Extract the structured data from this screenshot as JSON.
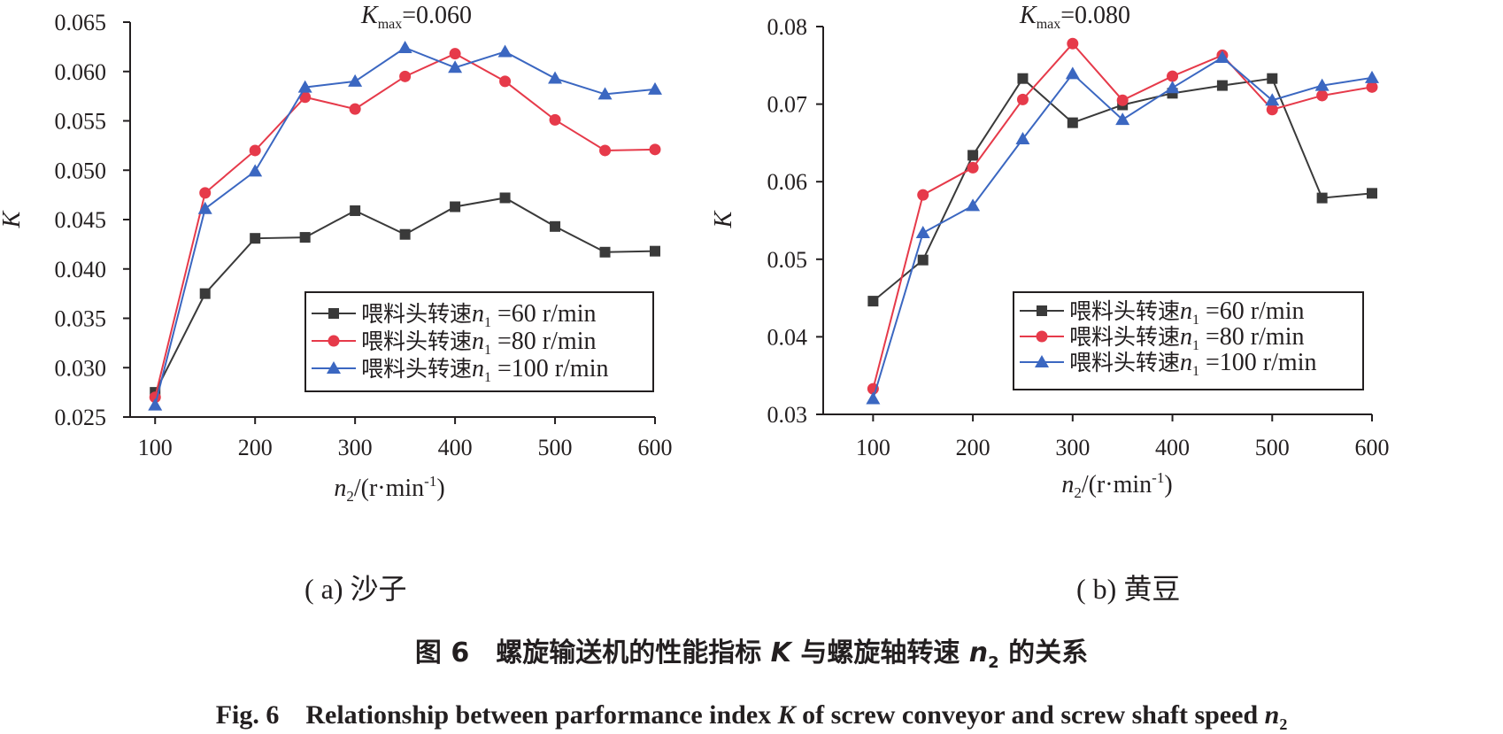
{
  "chart_data": [
    {
      "type": "line",
      "panel": "a",
      "annotation": {
        "text": "K",
        "sub": "max",
        "value": "=0.060"
      },
      "xlabel": {
        "text": "n",
        "sub": "2",
        "unit": "/(r·min",
        "exp": "-1",
        "close": ")"
      },
      "ylabel": "K",
      "x": [
        100,
        150,
        200,
        250,
        300,
        350,
        400,
        450,
        500,
        550,
        600
      ],
      "xticks": [
        "100",
        "200",
        "300",
        "400",
        "500",
        "600"
      ],
      "xtick_values": [
        100,
        200,
        300,
        400,
        500,
        600
      ],
      "yticks": [
        "0.025",
        "0.030",
        "0.035",
        "0.040",
        "0.045",
        "0.050",
        "0.055",
        "0.060",
        "0.065"
      ],
      "ytick_values": [
        0.025,
        0.03,
        0.035,
        0.04,
        0.045,
        0.05,
        0.055,
        0.06,
        0.065
      ],
      "xlim": [
        75,
        600
      ],
      "ylim": [
        0.025,
        0.065
      ],
      "legend_position": "bottom-right",
      "series": [
        {
          "name": "喂料头转速n1 =60 r/min",
          "label": {
            "prefix": "喂料头转速",
            "var": "n",
            "sub": "1",
            "rest": " =60 r/min"
          },
          "color": "#3a3a3a",
          "marker": "square",
          "values": [
            0.0275,
            0.0375,
            0.0431,
            0.0432,
            0.0459,
            0.0435,
            0.0463,
            0.0472,
            0.0443,
            0.0417,
            0.0418
          ]
        },
        {
          "name": "喂料头转速n1 =80 r/min",
          "label": {
            "prefix": "喂料头转速",
            "var": "n",
            "sub": "1",
            "rest": " =80 r/min"
          },
          "color": "#e63a4a",
          "marker": "circle",
          "values": [
            0.027,
            0.0477,
            0.052,
            0.0574,
            0.0562,
            0.0595,
            0.0618,
            0.059,
            0.0551,
            0.052,
            0.0521
          ]
        },
        {
          "name": "喂料头转速n1 =100 r/min",
          "label": {
            "prefix": "喂料头转速",
            "var": "n",
            "sub": "1",
            "rest": " =100 r/min"
          },
          "color": "#3b67c1",
          "marker": "triangle",
          "values": [
            0.0262,
            0.0461,
            0.0499,
            0.0584,
            0.059,
            0.0624,
            0.0604,
            0.062,
            0.0593,
            0.0577,
            0.0582
          ]
        }
      ]
    },
    {
      "type": "line",
      "panel": "b",
      "annotation": {
        "text": "K",
        "sub": "max",
        "value": "=0.080"
      },
      "xlabel": {
        "text": "n",
        "sub": "2",
        "unit": "/(r·min",
        "exp": "-1",
        "close": ")"
      },
      "ylabel": "K",
      "x": [
        100,
        150,
        200,
        250,
        300,
        350,
        400,
        450,
        500,
        550,
        600
      ],
      "xticks": [
        "100",
        "200",
        "300",
        "400",
        "500",
        "600"
      ],
      "xtick_values": [
        100,
        200,
        300,
        400,
        500,
        600
      ],
      "yticks": [
        "0.03",
        "0.04",
        "0.05",
        "0.06",
        "0.07",
        "0.08"
      ],
      "ytick_values": [
        0.03,
        0.04,
        0.05,
        0.06,
        0.07,
        0.08
      ],
      "xlim": [
        50,
        600
      ],
      "ylim": [
        0.03,
        0.08
      ],
      "legend_position": "bottom-right",
      "series": [
        {
          "name": "喂料头转速n1 =60 r/min",
          "label": {
            "prefix": "喂料头转速",
            "var": "n",
            "sub": "1",
            "rest": " =60 r/min"
          },
          "color": "#3a3a3a",
          "marker": "square",
          "values": [
            0.0446,
            0.0499,
            0.0634,
            0.0733,
            0.0676,
            0.0699,
            0.0714,
            0.0724,
            0.0733,
            0.0579,
            0.0585
          ]
        },
        {
          "name": "喂料头转速n1 =80 r/min",
          "label": {
            "prefix": "喂料头转速",
            "var": "n",
            "sub": "1",
            "rest": " =80 r/min"
          },
          "color": "#e63a4a",
          "marker": "circle",
          "values": [
            0.0333,
            0.0583,
            0.0618,
            0.0706,
            0.0778,
            0.0705,
            0.0736,
            0.0763,
            0.0693,
            0.0711,
            0.0722
          ]
        },
        {
          "name": "喂料头转速n1 =100 r/min",
          "label": {
            "prefix": "喂料头转速",
            "var": "n",
            "sub": "1",
            "rest": " =100 r/min"
          },
          "color": "#3b67c1",
          "marker": "triangle",
          "values": [
            0.032,
            0.0534,
            0.0569,
            0.0655,
            0.0739,
            0.068,
            0.0721,
            0.076,
            0.0705,
            0.0724,
            0.0734
          ]
        }
      ]
    }
  ],
  "sub_captions": [
    "( a) 沙子",
    "( b) 黄豆"
  ],
  "caption_cn": {
    "prefix": "图 6　螺旋输送机的性能指标 ",
    "k": "K",
    "mid": " 与螺旋轴转速 ",
    "n": "n",
    "sub": "2",
    "suffix": " 的关系"
  },
  "caption_en": {
    "prefix": "Fig. 6　Relationship between parformance index ",
    "k": "K",
    "mid": " of screw conveyor and screw shaft speed ",
    "n": "n",
    "sub": "2"
  }
}
